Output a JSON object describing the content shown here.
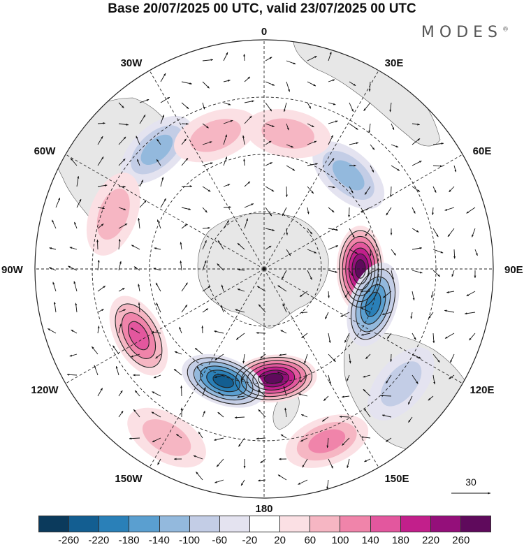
{
  "title": "Base 20/07/2025 00 UTC, valid 23/07/2025 00 UTC",
  "brand": "MODES",
  "brand_mark": "®",
  "longitude_labels": {
    "top": "0",
    "bottom": "180",
    "left": "90W",
    "right": "90E",
    "nw30": "30W",
    "ne30": "30E",
    "nw60": "60W",
    "ne60": "60E",
    "sw120": "120W",
    "se120": "120E",
    "sw150": "150W",
    "se150": "150E"
  },
  "reference_vector": {
    "label": "30",
    "magnitude": 30
  },
  "colorbar": {
    "ticks": [
      "-260",
      "-220",
      "-180",
      "-140",
      "-100",
      "-60",
      "-20",
      "20",
      "60",
      "100",
      "140",
      "180",
      "220",
      "260"
    ],
    "colors": [
      "#0b3a5c",
      "#135e91",
      "#2a80b8",
      "#5a9fd0",
      "#93b9dd",
      "#c3cde6",
      "#e4e3f0",
      "#ffffff",
      "#fbe0e4",
      "#f6b6c3",
      "#f084aa",
      "#e3579e",
      "#c21f8b",
      "#940f7a",
      "#5f0a5c"
    ]
  },
  "colors": {
    "land": "#e7e7e7",
    "grid": "#222222",
    "arrow": "#111111"
  },
  "anomaly_field": [
    {
      "name": "positive-anomaly-90e",
      "value": 260,
      "lon": 90,
      "colat": 0.42
    },
    {
      "name": "negative-anomaly-110e",
      "value": -180,
      "lon": 108,
      "colat": 0.5
    },
    {
      "name": "positive-anomaly-180",
      "value": 260,
      "lon": 175,
      "colat": 0.48
    },
    {
      "name": "negative-anomaly-155w",
      "value": -220,
      "lon": -160,
      "colat": 0.52
    },
    {
      "name": "positive-anomaly-120w",
      "value": 140,
      "lon": -118,
      "colat": 0.62
    },
    {
      "name": "negative-anomaly-45w",
      "value": -100,
      "lon": -42,
      "colat": 0.7
    },
    {
      "name": "negative-anomaly-40e",
      "value": -100,
      "lon": 42,
      "colat": 0.55
    },
    {
      "name": "positive-anomaly-10e",
      "value": 60,
      "lon": 10,
      "colat": 0.6
    },
    {
      "name": "positive-anomaly-20w",
      "value": 60,
      "lon": -20,
      "colat": 0.62
    },
    {
      "name": "positive-anomaly-150w",
      "value": 60,
      "lon": -150,
      "colat": 0.85
    },
    {
      "name": "positive-anomaly-160e",
      "value": 100,
      "lon": 160,
      "colat": 0.8
    },
    {
      "name": "negative-anomaly-130e",
      "value": -60,
      "lon": 130,
      "colat": 0.78
    },
    {
      "name": "positive-anomaly-70w",
      "value": 60,
      "lon": -70,
      "colat": 0.7
    }
  ]
}
